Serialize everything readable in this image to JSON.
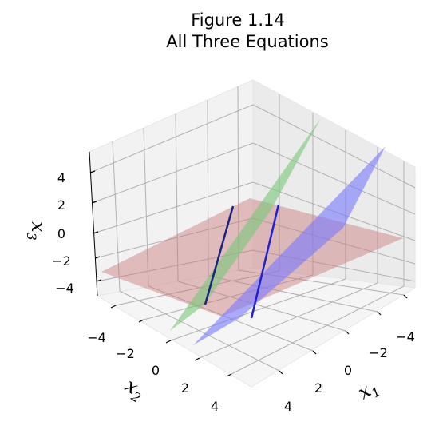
{
  "chart_data": {
    "type": "3d-surface",
    "title_line1": "Figure 1.14",
    "title_line2": "All Three Equations",
    "axes": {
      "x1": {
        "label_base": "x",
        "label_sub": "1",
        "ticks": [
          "−4",
          "−2",
          "0",
          "2",
          "4"
        ]
      },
      "x2": {
        "label_base": "x",
        "label_sub": "2",
        "ticks": [
          "−4",
          "−2",
          "0",
          "2",
          "4"
        ]
      },
      "x3": {
        "label_base": "x",
        "label_sub": "3",
        "ticks": [
          "−4",
          "−2",
          "0",
          "2",
          "4"
        ]
      }
    },
    "planes": [
      {
        "color": "#c87878",
        "opacity": 0.45
      },
      {
        "color": "#78c878",
        "opacity": 0.6
      },
      {
        "color": "#7878ff",
        "opacity": 0.6
      }
    ],
    "intersection_lines": [
      {
        "color": "#1a237e"
      },
      {
        "color": "#1f1fd6"
      }
    ]
  }
}
